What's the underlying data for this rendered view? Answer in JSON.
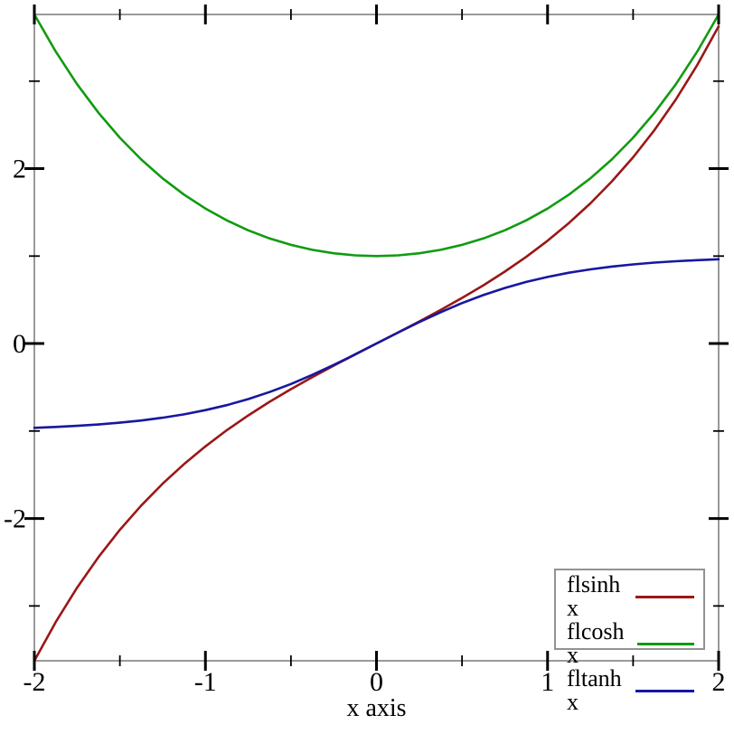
{
  "chart_data": {
    "type": "line",
    "title": "",
    "xlabel": "x axis",
    "ylabel": "",
    "xlim": [
      -2,
      2
    ],
    "ylim": [
      -3.6269,
      3.7622
    ],
    "grid": false,
    "legend_position": "bottom-right",
    "frame_color": "#9a9a9a",
    "tick_color": "#000000",
    "x_major_ticks": [
      -2,
      -1,
      0,
      1,
      2
    ],
    "x_tick_labels": [
      "-2",
      "-1",
      "0",
      "1",
      "2"
    ],
    "x_minor_ticks": [
      -1.5,
      -0.5,
      0.5,
      1.5
    ],
    "y_major_ticks": [
      -2,
      0,
      2
    ],
    "y_tick_labels": [
      "-2",
      "0",
      "2"
    ],
    "y_minor_ticks": [
      -3,
      -1,
      1,
      3
    ],
    "x": [
      -2,
      -1.875,
      -1.75,
      -1.625,
      -1.5,
      -1.375,
      -1.25,
      -1.125,
      -1,
      -0.875,
      -0.75,
      -0.625,
      -0.5,
      -0.375,
      -0.25,
      -0.125,
      0,
      0.125,
      0.25,
      0.375,
      0.5,
      0.625,
      0.75,
      0.875,
      1,
      1.125,
      1.25,
      1.375,
      1.5,
      1.625,
      1.75,
      1.875,
      2
    ],
    "series": [
      {
        "name": "flsinh x",
        "color": "#9b1717",
        "values": [
          -3.6269,
          -3.1839,
          -2.7904,
          -2.4408,
          -2.1293,
          -1.8511,
          -1.6019,
          -1.3778,
          -1.1752,
          -0.991,
          -0.8223,
          -0.6665,
          -0.5211,
          -0.3838,
          -0.2526,
          -0.1253,
          0,
          0.1253,
          0.2526,
          0.3838,
          0.5211,
          0.6665,
          0.8223,
          0.991,
          1.1752,
          1.3778,
          1.6019,
          1.8511,
          2.1293,
          2.4408,
          2.7904,
          3.1839,
          3.6269
        ]
      },
      {
        "name": "flcosh x",
        "color": "#109b10",
        "values": [
          3.7622,
          3.3372,
          2.9642,
          2.6377,
          2.3524,
          2.1039,
          1.8884,
          1.7025,
          1.5431,
          1.4079,
          1.2947,
          1.2018,
          1.1276,
          1.0711,
          1.0314,
          1.0078,
          1,
          1.0078,
          1.0314,
          1.0711,
          1.1276,
          1.2018,
          1.2947,
          1.4079,
          1.5431,
          1.7025,
          1.8884,
          2.1039,
          2.3524,
          2.6377,
          2.9642,
          3.3372,
          3.7622
        ]
      },
      {
        "name": "fltanh x",
        "color": "#1717a0",
        "values": [
          -0.964,
          -0.9538,
          -0.9414,
          -0.9254,
          -0.9051,
          -0.8797,
          -0.8483,
          -0.8093,
          -0.7616,
          -0.7039,
          -0.6351,
          -0.5546,
          -0.4621,
          -0.3584,
          -0.2449,
          -0.1244,
          0,
          0.1244,
          0.2449,
          0.3584,
          0.4621,
          0.5546,
          0.6351,
          0.7039,
          0.7616,
          0.8093,
          0.8483,
          0.8797,
          0.9051,
          0.9254,
          0.9414,
          0.9538,
          0.964
        ]
      }
    ]
  }
}
